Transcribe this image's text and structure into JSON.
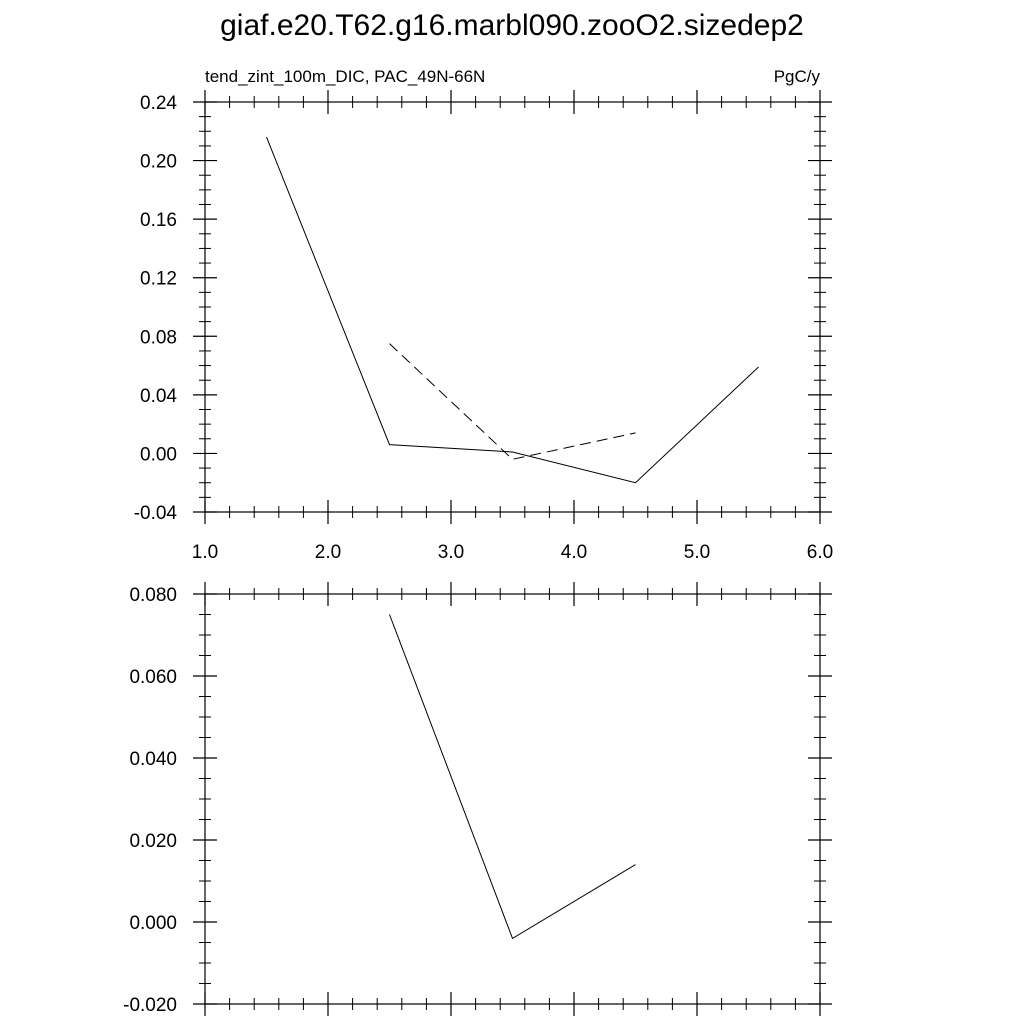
{
  "title": "giaf.e20.T62.g16.marbl090.zooO2.sizedep2",
  "chart_data": [
    {
      "type": "line",
      "left_label": "tend_zint_100m_DIC, PAC_49N-66N",
      "right_label": "PgC/y",
      "xlim": [
        1.0,
        6.0
      ],
      "ylim": [
        -0.04,
        0.24
      ],
      "x_ticks": [
        1.0,
        2.0,
        3.0,
        4.0,
        5.0,
        6.0
      ],
      "x_tick_labels": [
        "1.0",
        "2.0",
        "3.0",
        "4.0",
        "5.0",
        "6.0"
      ],
      "y_ticks": [
        -0.04,
        0.0,
        0.04,
        0.08,
        0.12,
        0.16,
        0.2,
        0.24
      ],
      "y_tick_labels": [
        "-0.04",
        "0.00",
        "0.04",
        "0.08",
        "0.12",
        "0.16",
        "0.20",
        "0.24"
      ],
      "grid": false,
      "series": [
        {
          "style": "solid",
          "color": "#000000",
          "points": [
            [
              1.5,
              0.216
            ],
            [
              2.5,
              0.006
            ],
            [
              3.5,
              0.001
            ],
            [
              4.5,
              -0.02
            ],
            [
              5.5,
              0.059
            ]
          ]
        },
        {
          "style": "dashed",
          "color": "#000000",
          "points": [
            [
              2.5,
              0.075
            ],
            [
              3.5,
              -0.004
            ],
            [
              4.5,
              0.014
            ]
          ]
        }
      ]
    },
    {
      "type": "line",
      "xlim": [
        1.0,
        6.0
      ],
      "ylim": [
        -0.02,
        0.08
      ],
      "x_ticks": [
        1.0,
        2.0,
        3.0,
        4.0,
        5.0,
        6.0
      ],
      "y_ticks": [
        -0.02,
        0.0,
        0.02,
        0.04,
        0.06,
        0.08
      ],
      "y_tick_labels": [
        "-0.020",
        "0.000",
        "0.020",
        "0.040",
        "0.060",
        "0.080"
      ],
      "grid": false,
      "series": [
        {
          "style": "solid",
          "color": "#000000",
          "points": [
            [
              2.5,
              0.075
            ],
            [
              3.5,
              -0.004
            ],
            [
              4.5,
              0.014
            ]
          ]
        }
      ]
    }
  ]
}
